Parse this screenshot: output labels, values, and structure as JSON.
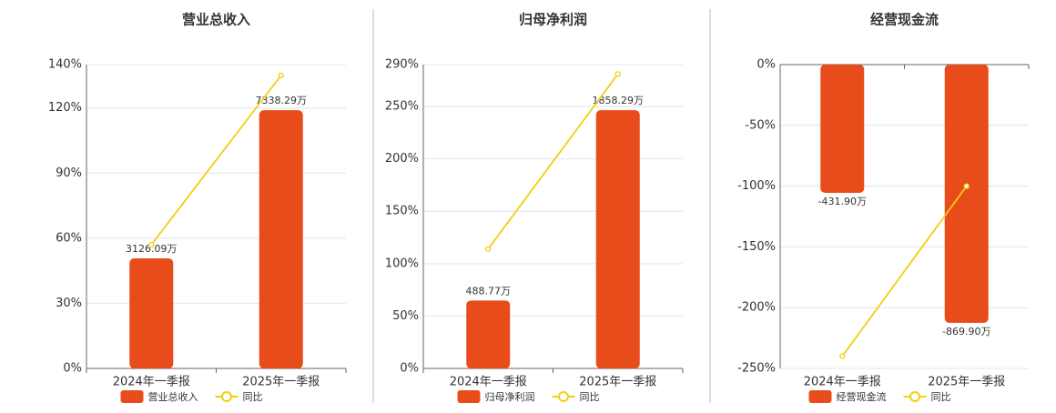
{
  "chart_data": [
    {
      "type": "bar",
      "title": "营业总收入",
      "categories": [
        "2024年一季报",
        "2025年一季报"
      ],
      "series": [
        {
          "name": "营业总收入",
          "type": "bar",
          "color": "#e84c1a",
          "values": [
            3126.09,
            7338.29
          ],
          "value_labels": [
            "3126.09万",
            "7338.29万"
          ]
        },
        {
          "name": "同比",
          "type": "line",
          "color": "#f0d010",
          "values": [
            57,
            135
          ]
        }
      ],
      "ylim": [
        0,
        140
      ],
      "yticks": [
        {
          "value": 0,
          "label": "0%"
        },
        {
          "value": 30,
          "label": "30%"
        },
        {
          "value": 60,
          "label": "60%"
        },
        {
          "value": 90,
          "label": "90%"
        },
        {
          "value": 120,
          "label": "120%"
        },
        {
          "value": 140,
          "label": "140%"
        }
      ],
      "grid": true
    },
    {
      "type": "bar",
      "title": "归母净利润",
      "categories": [
        "2024年一季报",
        "2025年一季报"
      ],
      "series": [
        {
          "name": "归母净利润",
          "type": "bar",
          "color": "#e84c1a",
          "values": [
            488.77,
            1858.29
          ],
          "value_labels": [
            "488.77万",
            "1858.29万"
          ]
        },
        {
          "name": "同比",
          "type": "line",
          "color": "#f0d010",
          "values": [
            114,
            281
          ]
        }
      ],
      "ylim": [
        0,
        290
      ],
      "yticks": [
        {
          "value": 0,
          "label": "0%"
        },
        {
          "value": 50,
          "label": "50%"
        },
        {
          "value": 100,
          "label": "100%"
        },
        {
          "value": 150,
          "label": "150%"
        },
        {
          "value": 200,
          "label": "200%"
        },
        {
          "value": 250,
          "label": "250%"
        },
        {
          "value": 290,
          "label": "290%"
        }
      ],
      "grid": true
    },
    {
      "type": "bar",
      "title": "经营现金流",
      "categories": [
        "2024年一季报",
        "2025年一季报"
      ],
      "series": [
        {
          "name": "经营现金流",
          "type": "bar",
          "color": "#e84c1a",
          "values": [
            -431.9,
            -869.9
          ],
          "value_labels": [
            "-431.90万",
            "-869.90万"
          ]
        },
        {
          "name": "同比",
          "type": "line",
          "color": "#f0d010",
          "values": [
            -240,
            -100
          ]
        }
      ],
      "ylim": [
        -250,
        0
      ],
      "yticks": [
        {
          "value": -250,
          "label": "-250%"
        },
        {
          "value": -200,
          "label": "-200%"
        },
        {
          "value": -150,
          "label": "-150%"
        },
        {
          "value": -100,
          "label": "-100%"
        },
        {
          "value": -50,
          "label": "-50%"
        },
        {
          "value": 0,
          "label": "0%"
        }
      ],
      "grid": true
    }
  ]
}
